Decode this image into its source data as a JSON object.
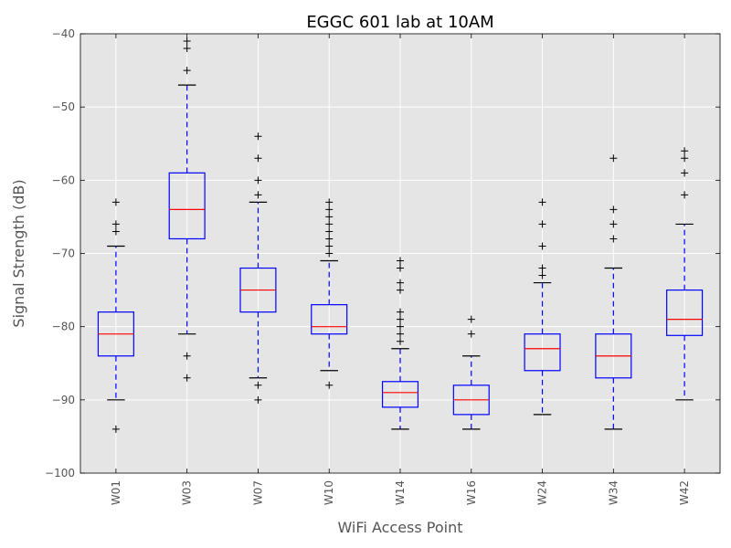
{
  "chart_data": {
    "type": "box",
    "title": "EGGC 601 lab at 10AM",
    "xlabel": "WiFi Access Point",
    "ylabel": "Signal Strength (dB)",
    "ylim": [
      -100,
      -40
    ],
    "yticks": [
      -100,
      -90,
      -80,
      -70,
      -60,
      -50,
      -40
    ],
    "ytick_labels": [
      "−100",
      "−90",
      "−80",
      "−70",
      "−60",
      "−50",
      "−40"
    ],
    "grid": true,
    "categories": [
      "W01",
      "W03",
      "W07",
      "W10",
      "W14",
      "W16",
      "W24",
      "W34",
      "W42"
    ],
    "boxes": [
      {
        "q1": -84,
        "median": -81,
        "q3": -78,
        "whisker_low": -90,
        "whisker_high": -69,
        "outliers": [
          -63,
          -66,
          -67,
          -94
        ]
      },
      {
        "q1": -68,
        "median": -64,
        "q3": -59,
        "whisker_low": -81,
        "whisker_high": -47,
        "outliers": [
          -41,
          -42,
          -45,
          -84,
          -87
        ]
      },
      {
        "q1": -78,
        "median": -75,
        "q3": -72,
        "whisker_low": -87,
        "whisker_high": -63,
        "outliers": [
          -54,
          -57,
          -60,
          -62,
          -88,
          -90
        ]
      },
      {
        "q1": -81,
        "median": -80,
        "q3": -77,
        "whisker_low": -86,
        "whisker_high": -71,
        "outliers": [
          -63,
          -64,
          -65,
          -66,
          -67,
          -68,
          -69,
          -70,
          -88
        ]
      },
      {
        "q1": -91,
        "median": -89,
        "q3": -87.5,
        "whisker_low": -94,
        "whisker_high": -83,
        "outliers": [
          -71,
          -72,
          -74,
          -75,
          -78,
          -79,
          -80,
          -81,
          -82
        ]
      },
      {
        "q1": -92,
        "median": -90,
        "q3": -88,
        "whisker_low": -94,
        "whisker_high": -84,
        "outliers": [
          -79,
          -81
        ]
      },
      {
        "q1": -86,
        "median": -83,
        "q3": -81,
        "whisker_low": -92,
        "whisker_high": -74,
        "outliers": [
          -63,
          -66,
          -69,
          -72,
          -73
        ]
      },
      {
        "q1": -87,
        "median": -84,
        "q3": -81,
        "whisker_low": -94,
        "whisker_high": -72,
        "outliers": [
          -57,
          -64,
          -66,
          -68
        ]
      },
      {
        "q1": -81.2,
        "median": -79,
        "q3": -75,
        "whisker_low": -90,
        "whisker_high": -66,
        "outliers": [
          -56,
          -57,
          -59,
          -62
        ]
      }
    ],
    "colors": {
      "plot_bg": "#e5e5e5",
      "grid": "#ffffff",
      "box": "#0000ff",
      "median": "#ff0000",
      "cap": "#000000",
      "flier": "#000000"
    }
  }
}
